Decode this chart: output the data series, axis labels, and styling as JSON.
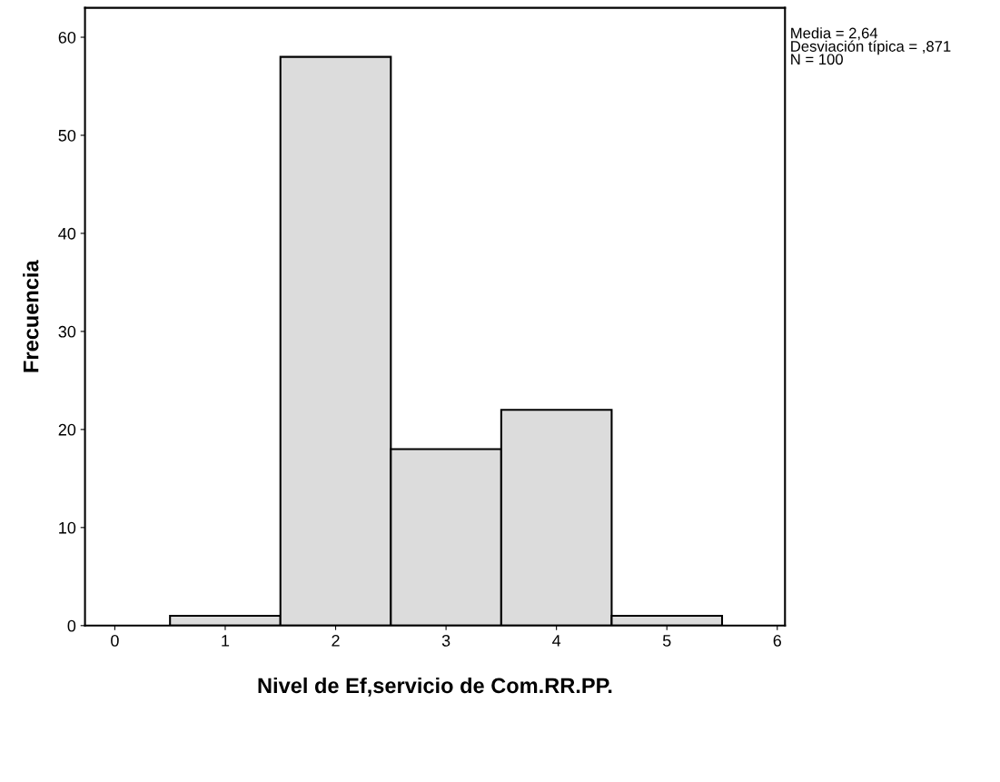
{
  "chart_data": {
    "type": "histogram",
    "xlabel": "Nivel de Ef,servicio de Com.RR.PP.",
    "ylabel": "Frecuencia",
    "bins": [
      0.5,
      1.5,
      2.5,
      3.5,
      4.5,
      5.5
    ],
    "values": [
      1,
      58,
      18,
      22,
      1
    ],
    "color": "#dcdcdc",
    "xlim": [
      -0.27,
      6.07
    ],
    "xticks": [
      0,
      1,
      2,
      3,
      4,
      5,
      6
    ],
    "ylim": [
      0,
      63
    ],
    "yticks": [
      0,
      10,
      20,
      30,
      40,
      50,
      60
    ],
    "annotations": [
      "Media = 2,64\nDesviación típica = ,871\nN = 100"
    ],
    "grid": false,
    "legend": false
  }
}
